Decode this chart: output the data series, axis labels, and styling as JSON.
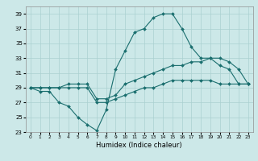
{
  "xlabel": "Humidex (Indice chaleur)",
  "ylabel": "",
  "background_color": "#cce8e8",
  "grid_color": "#aad0d0",
  "line_color": "#1a6e6e",
  "xlim": [
    -0.5,
    23.5
  ],
  "ylim": [
    23,
    40
  ],
  "yticks": [
    23,
    25,
    27,
    29,
    31,
    33,
    35,
    37,
    39
  ],
  "xticks": [
    0,
    1,
    2,
    3,
    4,
    5,
    6,
    7,
    8,
    9,
    10,
    11,
    12,
    13,
    14,
    15,
    16,
    17,
    18,
    19,
    20,
    21,
    22,
    23
  ],
  "line1_x": [
    0,
    1,
    2,
    3,
    4,
    5,
    6,
    7,
    8,
    9,
    10,
    11,
    12,
    13,
    14,
    15,
    16,
    17,
    18,
    19,
    20,
    21,
    22,
    23
  ],
  "line1_y": [
    29,
    28.5,
    28.5,
    27,
    26.5,
    25,
    24,
    23.2,
    26,
    31.5,
    34,
    36.5,
    37,
    38.5,
    39,
    39,
    37,
    34.5,
    33,
    33,
    32,
    31.5,
    29.5,
    29.5
  ],
  "line2_x": [
    0,
    1,
    2,
    3,
    4,
    5,
    6,
    7,
    8,
    9,
    10,
    11,
    12,
    13,
    14,
    15,
    16,
    17,
    18,
    19,
    20,
    21,
    22,
    23
  ],
  "line2_y": [
    29,
    29,
    29,
    29,
    29.5,
    29.5,
    29.5,
    27.5,
    27.5,
    28,
    29.5,
    30,
    30.5,
    31,
    31.5,
    32,
    32,
    32.5,
    32.5,
    33,
    33,
    32.5,
    31.5,
    29.5
  ],
  "line3_x": [
    0,
    1,
    2,
    3,
    4,
    5,
    6,
    7,
    8,
    9,
    10,
    11,
    12,
    13,
    14,
    15,
    16,
    17,
    18,
    19,
    20,
    21,
    22,
    23
  ],
  "line3_y": [
    29,
    29,
    29,
    29,
    29,
    29,
    29,
    27,
    27,
    27.5,
    28,
    28.5,
    29,
    29,
    29.5,
    30,
    30,
    30,
    30,
    30,
    29.5,
    29.5,
    29.5,
    29.5
  ]
}
